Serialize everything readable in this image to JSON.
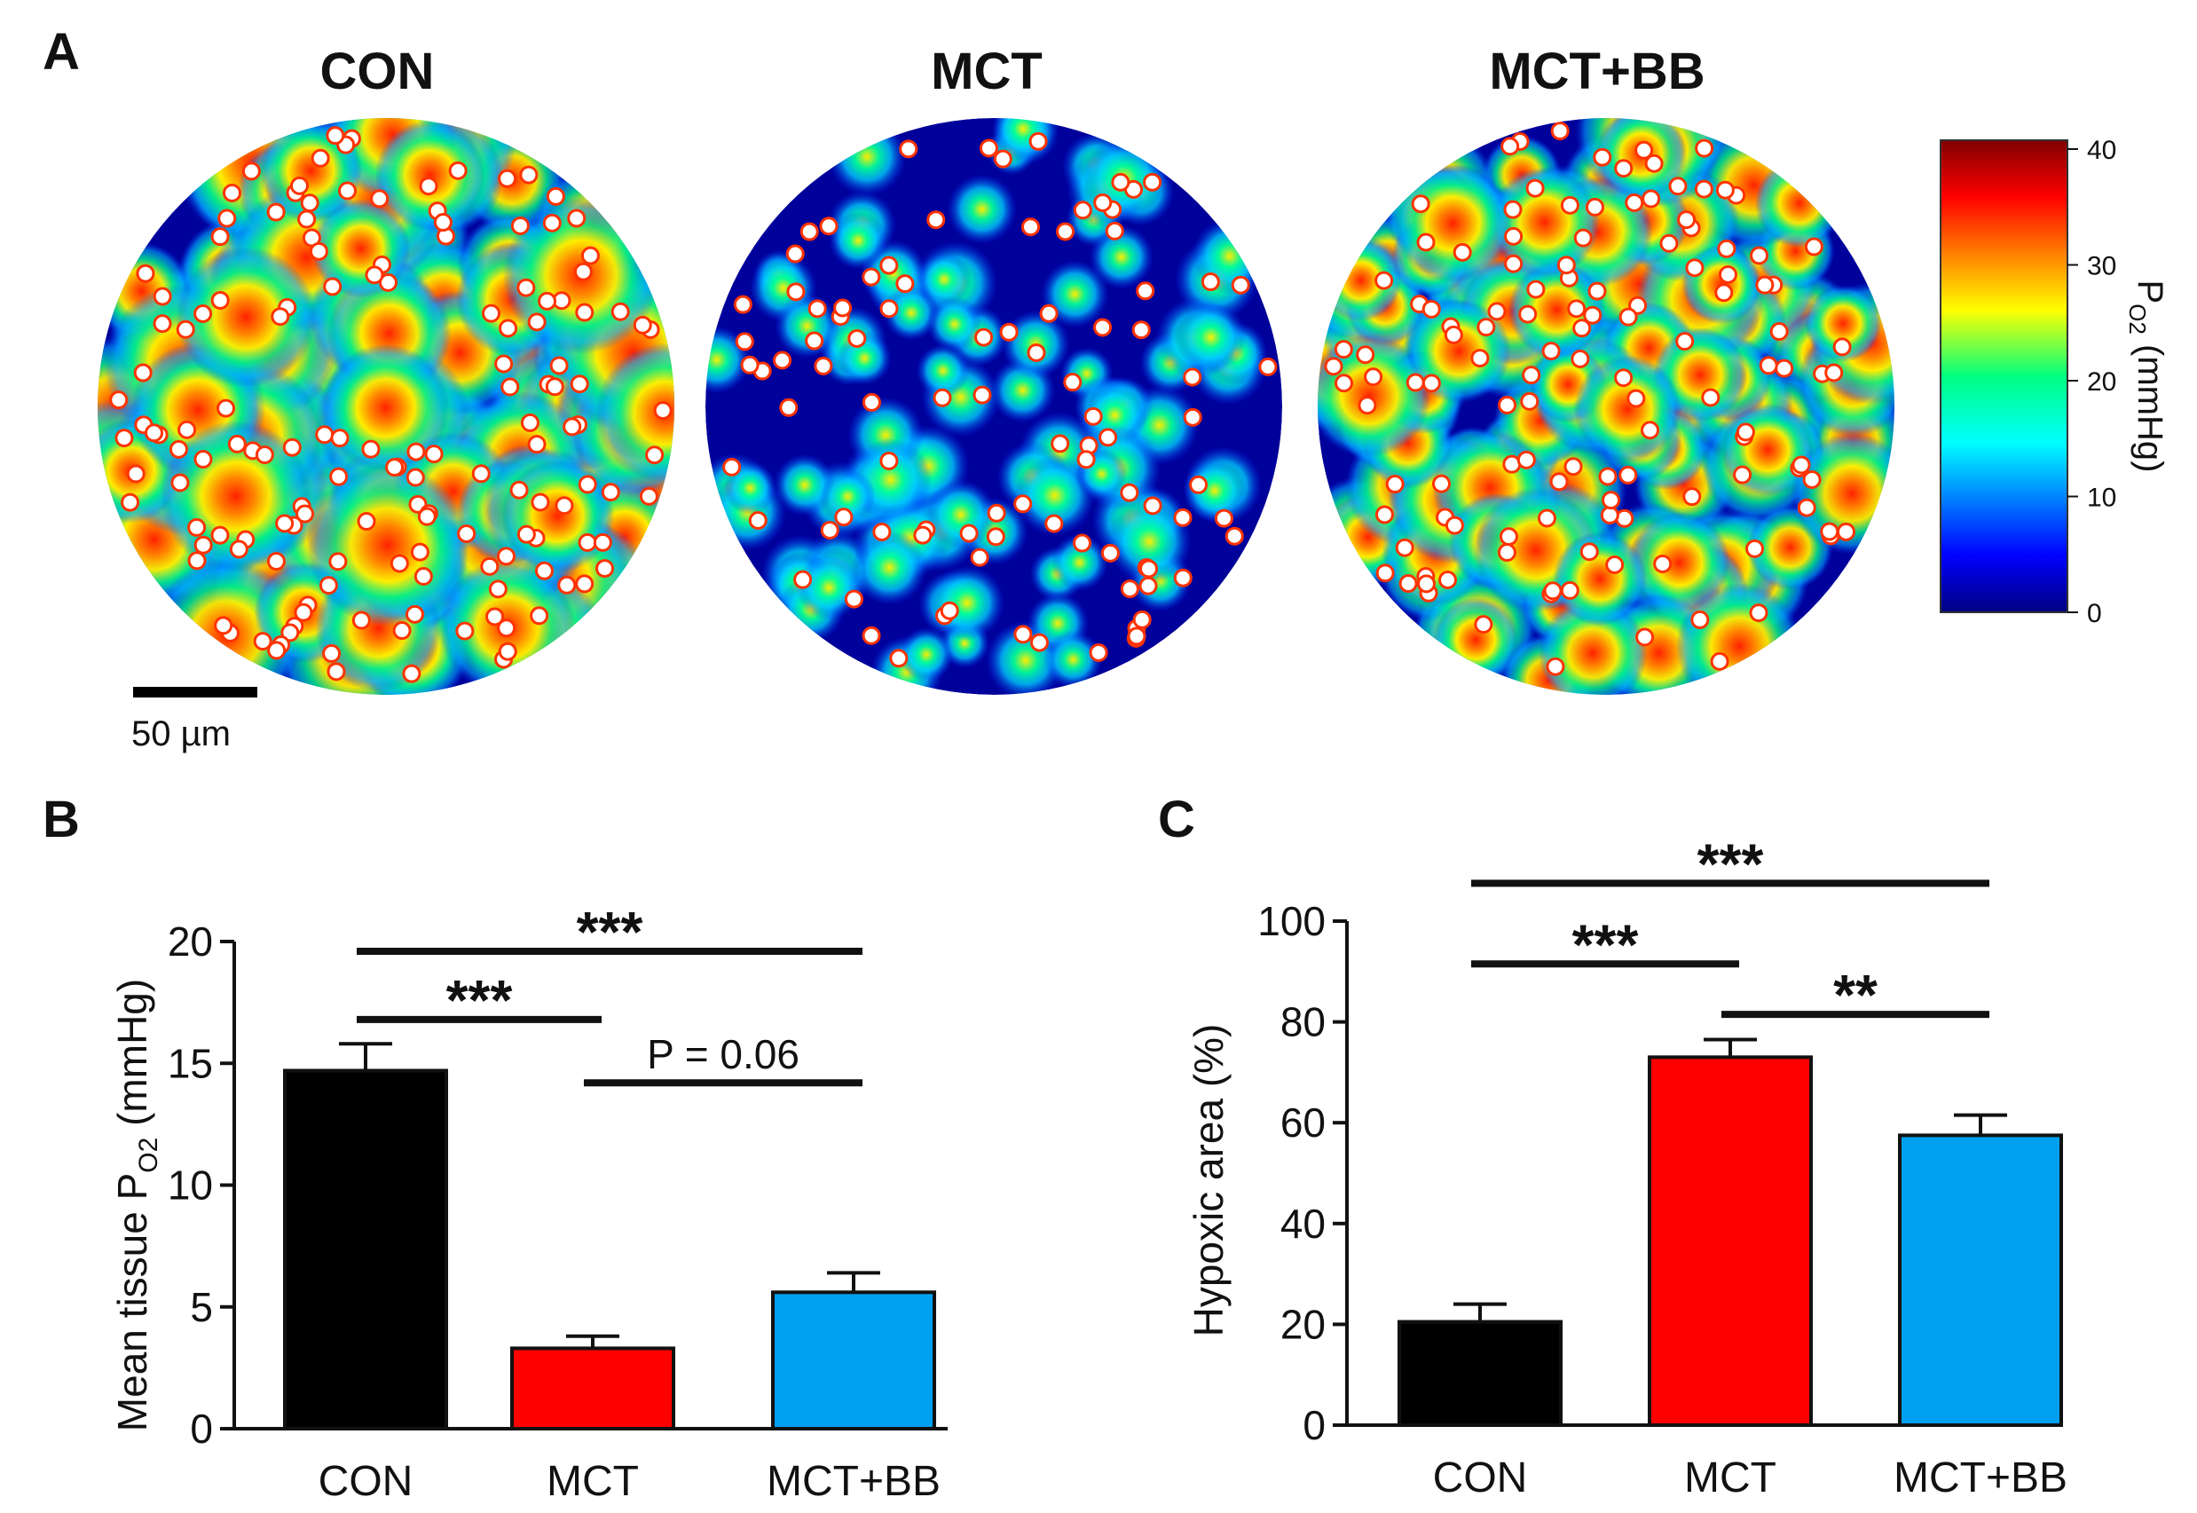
{
  "panel_a": {
    "letter": "A",
    "maps": [
      {
        "title": "CON",
        "level": "high"
      },
      {
        "title": "MCT",
        "level": "low"
      },
      {
        "title": "MCT+BB",
        "level": "mid"
      }
    ],
    "scale_bar_label": "50 µm",
    "colorbar": {
      "ticks": [
        "40",
        "30",
        "20",
        "10",
        "0"
      ],
      "label_main": "P",
      "label_sub": "O2",
      "label_unit": " (mmHg)",
      "min": 0,
      "max": 40
    }
  },
  "chart_data": [
    {
      "type": "bar",
      "panel_letter": "B",
      "categories": [
        "CON",
        "MCT",
        "MCT+BB"
      ],
      "values": [
        14.7,
        3.3,
        5.6
      ],
      "errors": [
        1.1,
        0.5,
        0.8
      ],
      "colors": [
        "#000000",
        "#ff0000",
        "#00a0f0"
      ],
      "ylabel_main": "Mean tissue P",
      "ylabel_sub": "O2",
      "ylabel_unit": " (mmHg)",
      "ylim": [
        0,
        20
      ],
      "yticks": [
        0,
        5,
        10,
        15,
        20
      ],
      "ytick_labels": [
        "0",
        "5",
        "10",
        "15",
        "20"
      ],
      "annotations": [
        {
          "label": "***",
          "from": 0,
          "to": 2,
          "level": 19.6
        },
        {
          "label": "***",
          "from": 0,
          "to": 1,
          "level": 16.8
        },
        {
          "label": "P = 0.06",
          "from": 1,
          "to": 2,
          "level": 14.2
        }
      ]
    },
    {
      "type": "bar",
      "panel_letter": "C",
      "categories": [
        "CON",
        "MCT",
        "MCT+BB"
      ],
      "values": [
        20.5,
        73,
        57.5
      ],
      "errors": [
        3.5,
        3.5,
        4.0
      ],
      "colors": [
        "#000000",
        "#ff0000",
        "#00a0f0"
      ],
      "ylabel": "Hypoxic area (%)",
      "ylim": [
        0,
        100
      ],
      "yticks": [
        0,
        20,
        40,
        60,
        80,
        100
      ],
      "ytick_labels": [
        "0",
        "20",
        "40",
        "60",
        "80",
        "100"
      ],
      "annotations": [
        {
          "label": "***",
          "from": 0,
          "to": 2,
          "level": 107.5
        },
        {
          "label": "***",
          "from": 0,
          "to": 1,
          "level": 91.5
        },
        {
          "label": "**",
          "from": 1,
          "to": 2,
          "level": 81.5
        }
      ]
    }
  ]
}
